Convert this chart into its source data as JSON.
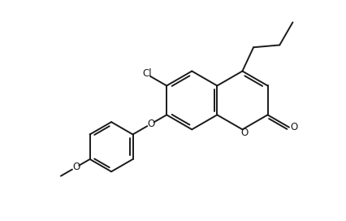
{
  "bg_color": "#ffffff",
  "line_color": "#1a1a1a",
  "line_width": 1.4,
  "figsize": [
    4.27,
    2.72
  ],
  "dpi": 100,
  "xlim": [
    -1.5,
    8.5
  ],
  "ylim": [
    -1.0,
    6.5
  ]
}
